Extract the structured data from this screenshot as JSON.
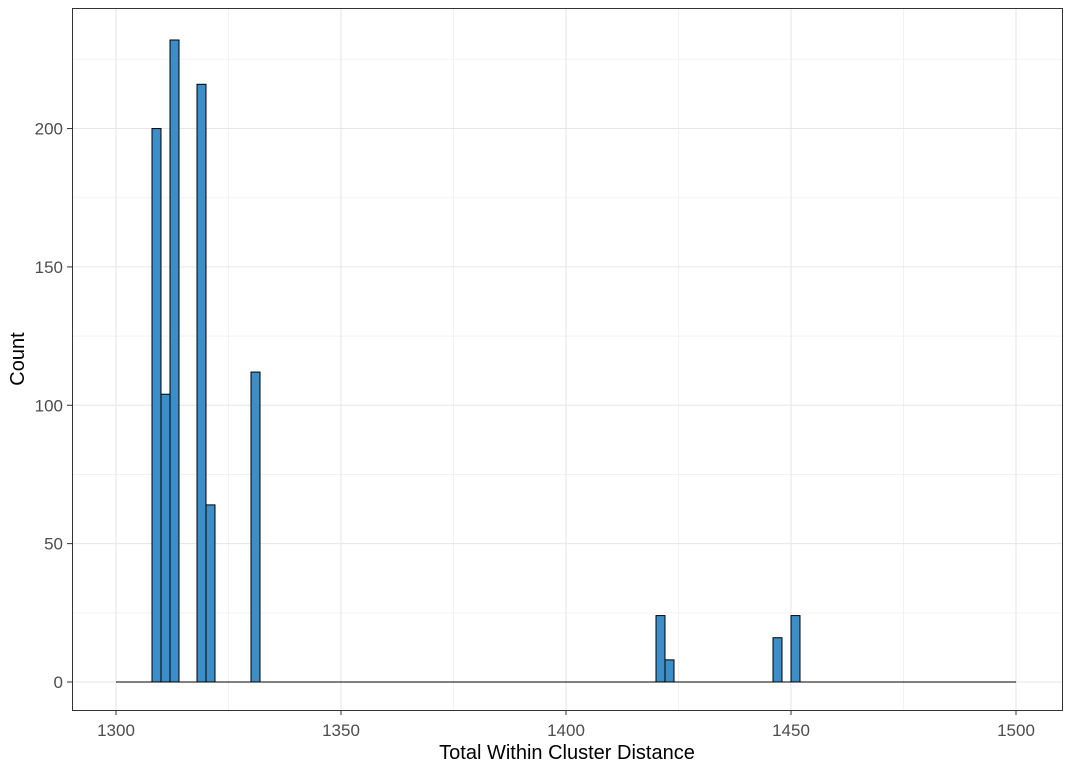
{
  "chart_data": {
    "type": "bar",
    "title": "",
    "xlabel": "Total Within Cluster Distance",
    "ylabel": "Count",
    "xlim": [
      1300,
      1500
    ],
    "ylim": [
      0,
      232
    ],
    "x_ticks": [
      1300,
      1350,
      1400,
      1450,
      1500
    ],
    "y_ticks": [
      0,
      50,
      100,
      150,
      200
    ],
    "grid": true,
    "bin_width": 2,
    "bins": [
      {
        "x0": 1308,
        "x1": 1310,
        "count": 200
      },
      {
        "x0": 1310,
        "x1": 1312,
        "count": 104
      },
      {
        "x0": 1312,
        "x1": 1314,
        "count": 232
      },
      {
        "x0": 1318,
        "x1": 1320,
        "count": 216
      },
      {
        "x0": 1320,
        "x1": 1322,
        "count": 64
      },
      {
        "x0": 1330,
        "x1": 1332,
        "count": 112
      },
      {
        "x0": 1420,
        "x1": 1422,
        "count": 24
      },
      {
        "x0": 1422,
        "x1": 1424,
        "count": 8
      },
      {
        "x0": 1446,
        "x1": 1448,
        "count": 16
      },
      {
        "x0": 1450,
        "x1": 1452,
        "count": 24
      }
    ],
    "baseline_range": [
      1300,
      1500
    ],
    "bar_fill": "#3b8ec8",
    "bar_stroke": "#000000"
  }
}
